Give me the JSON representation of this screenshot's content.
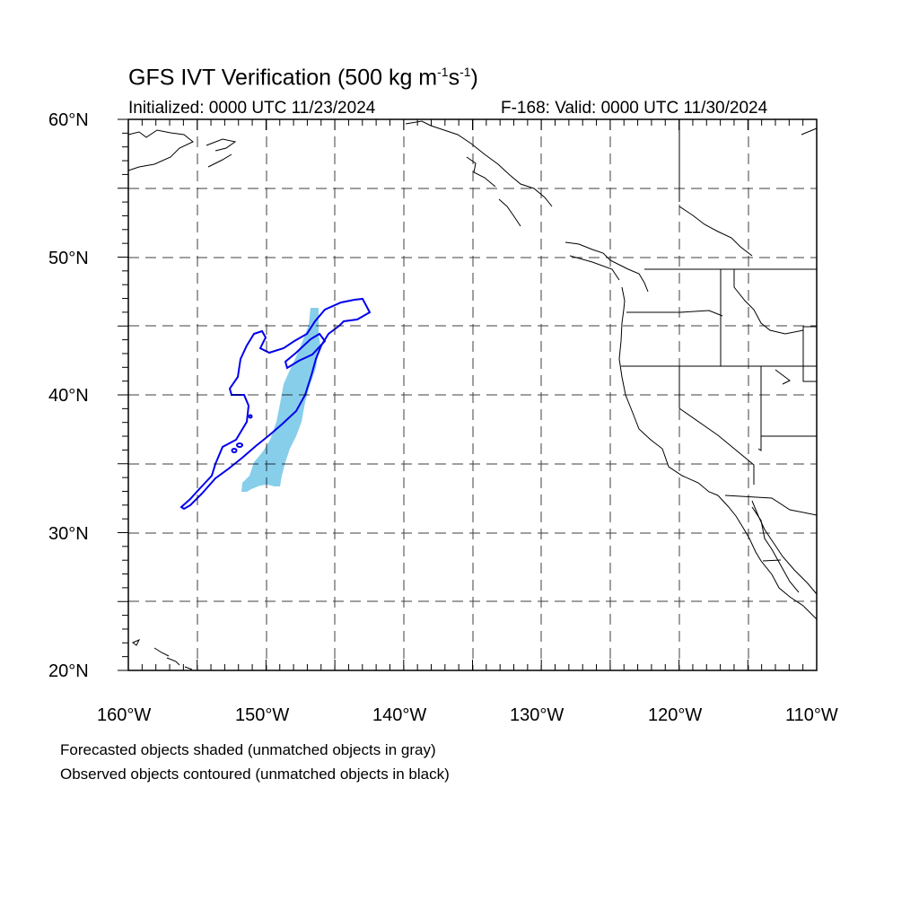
{
  "header": {
    "title_main": "GFS IVT Verification (500 kg m",
    "title_exp1": "-1",
    "title_mid": "s",
    "title_exp2": "-1",
    "title_end": ")",
    "initialized": "Initialized: 0000 UTC 11/23/2024",
    "valid": "F-168: Valid: 0000 UTC 11/30/2024"
  },
  "axes": {
    "lat_labels": [
      "60°N",
      "50°N",
      "40°N",
      "30°N",
      "20°N"
    ],
    "lon_labels": [
      "160°W",
      "150°W",
      "140°W",
      "130°W",
      "120°W",
      "110°W"
    ],
    "lat_range": [
      20,
      60
    ],
    "lon_range": [
      -160,
      -110
    ]
  },
  "legend": {
    "line1": "Forecasted objects shaded (unmatched objects in gray)",
    "line2": "Observed objects contoured (unmatched objects in black)"
  },
  "colors": {
    "forecast_shade": "#87ceeb",
    "observed_contour": "#0000ee",
    "coastline": "#000000"
  }
}
